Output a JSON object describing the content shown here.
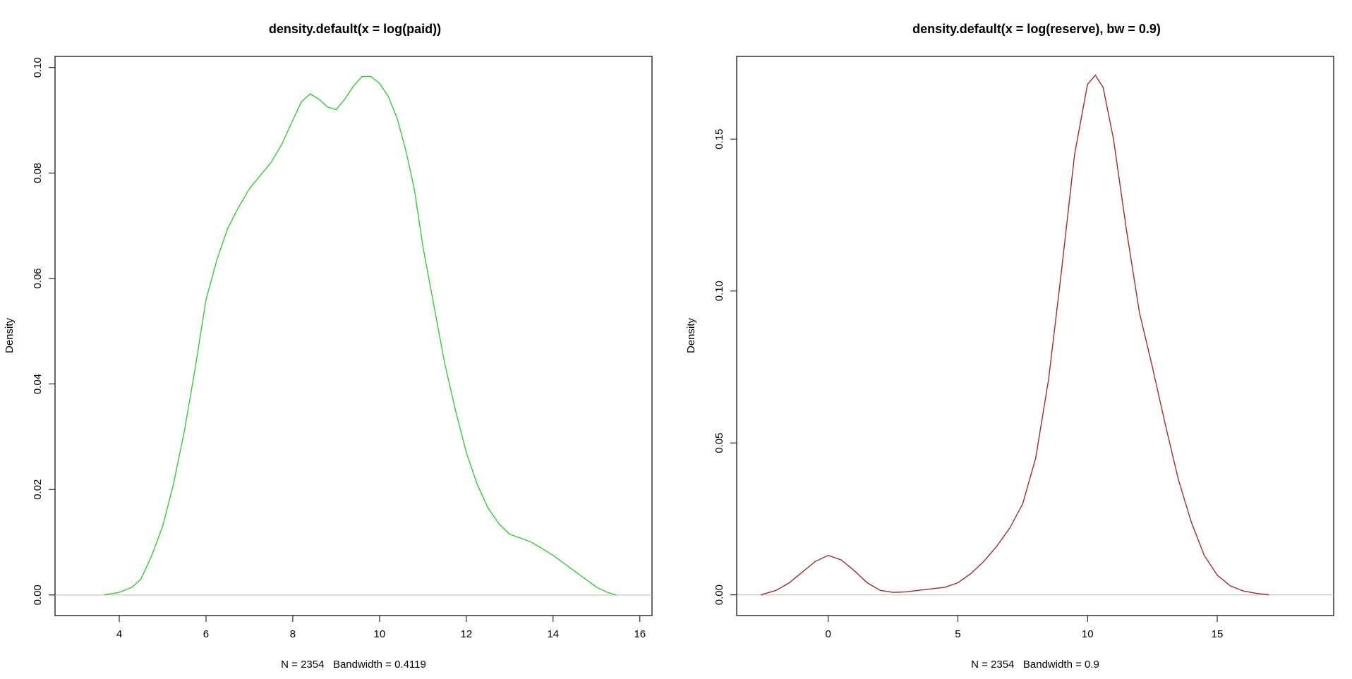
{
  "chart_data": [
    {
      "type": "line",
      "title": "density.default(x = log(paid))",
      "xlabel": "N = 2354   Bandwidth = 0.4119",
      "ylabel": "Density",
      "xlim": [
        2.52,
        16.28
      ],
      "ylim": [
        -0.0039,
        0.1021
      ],
      "xticks": [
        4,
        6,
        8,
        10,
        12,
        14,
        16
      ],
      "yticks": [
        0.0,
        0.02,
        0.04,
        0.06,
        0.08,
        0.1
      ],
      "ytick_labels": [
        "0.00",
        "0.02",
        "0.04",
        "0.06",
        "0.08",
        "0.10"
      ],
      "baseline": 0,
      "grid": false,
      "series": [
        {
          "color": "#33cc33",
          "x": [
            3.65,
            4.0,
            4.3,
            4.5,
            4.75,
            5.0,
            5.25,
            5.5,
            5.75,
            6.0,
            6.25,
            6.5,
            6.75,
            7.0,
            7.25,
            7.5,
            7.75,
            8.0,
            8.2,
            8.4,
            8.6,
            8.8,
            9.0,
            9.2,
            9.4,
            9.6,
            9.8,
            10.0,
            10.2,
            10.4,
            10.6,
            10.8,
            11.0,
            11.25,
            11.5,
            11.75,
            12.0,
            12.25,
            12.5,
            12.75,
            13.0,
            13.25,
            13.5,
            13.75,
            14.0,
            14.25,
            14.5,
            14.75,
            15.0,
            15.25,
            15.45
          ],
          "y": [
            0.0,
            0.0005,
            0.0015,
            0.003,
            0.0075,
            0.013,
            0.021,
            0.031,
            0.043,
            0.056,
            0.0635,
            0.0695,
            0.0735,
            0.077,
            0.0795,
            0.082,
            0.0855,
            0.09,
            0.0935,
            0.095,
            0.094,
            0.0925,
            0.092,
            0.094,
            0.0965,
            0.0983,
            0.0983,
            0.097,
            0.0945,
            0.0905,
            0.0845,
            0.077,
            0.066,
            0.055,
            0.044,
            0.035,
            0.027,
            0.021,
            0.0165,
            0.0135,
            0.0115,
            0.0108,
            0.01,
            0.0088,
            0.0075,
            0.006,
            0.0045,
            0.003,
            0.0015,
            0.0005,
            0.0
          ]
        }
      ]
    },
    {
      "type": "line",
      "title": "density.default(x = log(reserve), bw = 0.9)",
      "xlabel": "N = 2354   Bandwidth = 0.9",
      "ylabel": "Density",
      "xlim": [
        -3.53,
        19.49
      ],
      "ylim": [
        -0.0068,
        0.1772
      ],
      "xticks": [
        0,
        5,
        10,
        15
      ],
      "yticks": [
        0.0,
        0.05,
        0.1,
        0.15
      ],
      "ytick_labels": [
        "0.00",
        "0.05",
        "0.10",
        "0.15"
      ],
      "baseline": 0,
      "grid": false,
      "series": [
        {
          "color": "#a52a2a",
          "x": [
            -2.6,
            -2.0,
            -1.5,
            -1.0,
            -0.5,
            0.0,
            0.5,
            1.0,
            1.5,
            2.0,
            2.5,
            3.0,
            3.5,
            4.0,
            4.5,
            5.0,
            5.5,
            6.0,
            6.5,
            7.0,
            7.5,
            8.0,
            8.5,
            9.0,
            9.5,
            10.0,
            10.3,
            10.6,
            11.0,
            11.5,
            12.0,
            12.5,
            13.0,
            13.5,
            14.0,
            14.5,
            15.0,
            15.5,
            16.0,
            16.5,
            17.0
          ],
          "y": [
            0.0,
            0.0015,
            0.004,
            0.0075,
            0.011,
            0.013,
            0.0115,
            0.008,
            0.004,
            0.0015,
            0.0008,
            0.001,
            0.0015,
            0.002,
            0.0025,
            0.004,
            0.007,
            0.011,
            0.016,
            0.022,
            0.03,
            0.045,
            0.071,
            0.107,
            0.145,
            0.168,
            0.171,
            0.167,
            0.15,
            0.12,
            0.093,
            0.075,
            0.056,
            0.038,
            0.024,
            0.013,
            0.0065,
            0.003,
            0.0013,
            0.0005,
            0.0
          ]
        }
      ]
    }
  ]
}
